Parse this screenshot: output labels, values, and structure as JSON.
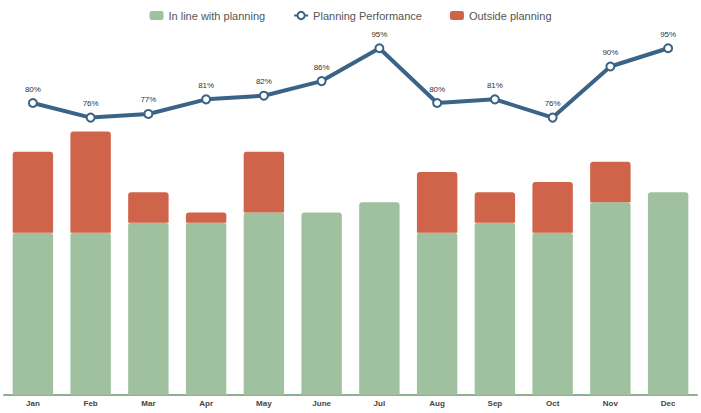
{
  "chart_data": {
    "type": "bar",
    "stacked": true,
    "grid": false,
    "tick_labels": "x",
    "legend": "top",
    "categories": [
      "Jan",
      "Feb",
      "Mar",
      "Apr",
      "May",
      "June",
      "Jul",
      "Aug",
      "Sep",
      "Oct",
      "Nov",
      "Dec"
    ],
    "ylim": [
      0,
      36
    ],
    "y2lim": [
      0,
      100
    ],
    "series": [
      {
        "name": "In line with planning",
        "type": "bar",
        "color": "#9fc19f",
        "values": [
          16,
          16,
          17,
          17,
          18,
          18,
          19,
          16,
          17,
          16,
          19,
          20
        ]
      },
      {
        "name": "Planning Performance",
        "type": "line",
        "axis": "y2",
        "color": "#3b6388",
        "marker": "circle",
        "line_style": "solid",
        "data_labels": true,
        "values": [
          80,
          76,
          77,
          81,
          82,
          86,
          95,
          80,
          81,
          76,
          90,
          95
        ],
        "value_labels": [
          "80%",
          "76%",
          "77%",
          "81%",
          "82%",
          "86%",
          "95%",
          "80%",
          "81%",
          "76%",
          "90%",
          "95%"
        ]
      },
      {
        "name": "Outside planning",
        "type": "bar",
        "color": "#d0644a",
        "values": [
          8,
          10,
          3,
          1,
          6,
          0,
          0,
          6,
          3,
          5,
          4,
          0
        ]
      }
    ]
  }
}
